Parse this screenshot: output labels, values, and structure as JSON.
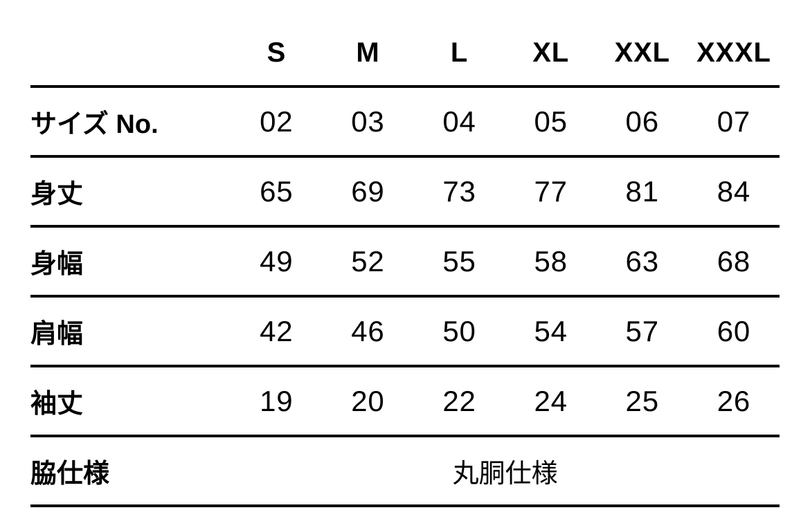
{
  "chart_data": {
    "type": "table",
    "columns": [
      "S",
      "M",
      "L",
      "XL",
      "XXL",
      "XXXL"
    ],
    "rows": [
      {
        "label": "サイズ No.",
        "values": [
          "02",
          "03",
          "04",
          "05",
          "06",
          "07"
        ]
      },
      {
        "label": "身丈",
        "values": [
          "65",
          "69",
          "73",
          "77",
          "81",
          "84"
        ]
      },
      {
        "label": "身幅",
        "values": [
          "49",
          "52",
          "55",
          "58",
          "63",
          "68"
        ]
      },
      {
        "label": "肩幅",
        "values": [
          "42",
          "46",
          "50",
          "54",
          "57",
          "60"
        ]
      },
      {
        "label": "袖丈",
        "values": [
          "19",
          "20",
          "22",
          "24",
          "25",
          "26"
        ]
      }
    ],
    "footer_row": {
      "label": "脇仕様",
      "value": "丸胴仕様"
    },
    "layout_hints": {
      "corner_cell": "",
      "rule_color": "#000000",
      "rule_thickness_px": 4,
      "text_color": "#000000",
      "background": "#ffffff",
      "footer_value_spans_all_size_columns": true
    }
  }
}
